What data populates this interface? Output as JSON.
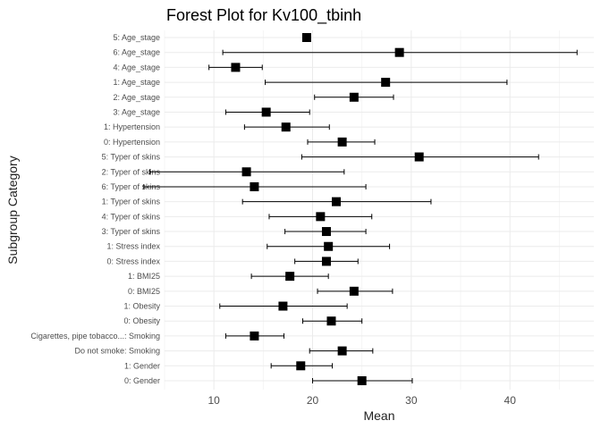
{
  "chart_data": {
    "type": "scatter",
    "subtype": "forest",
    "title": "Forest Plot for Kv100_tbinh",
    "xlabel": "Mean",
    "ylabel": "Subgroup Category",
    "xlim": [
      5.0,
      48.5
    ],
    "xticks": [
      10,
      20,
      30,
      40
    ],
    "grid": true,
    "legend": "none",
    "rows": [
      {
        "label": "5: Age_stage",
        "mean": 19.4,
        "lower": 19.4,
        "upper": 19.4
      },
      {
        "label": "6: Age_stage",
        "mean": 28.8,
        "lower": 10.9,
        "upper": 46.8
      },
      {
        "label": "4: Age_stage",
        "mean": 12.2,
        "lower": 9.5,
        "upper": 14.9
      },
      {
        "label": "1: Age_stage",
        "mean": 27.4,
        "lower": 15.2,
        "upper": 39.7
      },
      {
        "label": "2: Age_stage",
        "mean": 24.2,
        "lower": 20.2,
        "upper": 28.2
      },
      {
        "label": "3: Age_stage",
        "mean": 15.3,
        "lower": 11.2,
        "upper": 19.7
      },
      {
        "label": "1: Hypertension",
        "mean": 17.3,
        "lower": 13.1,
        "upper": 21.7
      },
      {
        "label": "0: Hypertension",
        "mean": 23.0,
        "lower": 19.5,
        "upper": 26.3
      },
      {
        "label": "5: Typer of skins",
        "mean": 30.8,
        "lower": 18.9,
        "upper": 42.9
      },
      {
        "label": "2: Typer of skins",
        "mean": 13.3,
        "lower": 3.5,
        "upper": 23.2
      },
      {
        "label": "6: Typer of skins",
        "mean": 14.1,
        "lower": 2.9,
        "upper": 25.4
      },
      {
        "label": "1: Typer of skins",
        "mean": 22.4,
        "lower": 12.9,
        "upper": 32.0
      },
      {
        "label": "4: Typer of skins",
        "mean": 20.8,
        "lower": 15.6,
        "upper": 26.0
      },
      {
        "label": "3: Typer of skins",
        "mean": 21.4,
        "lower": 17.2,
        "upper": 25.4
      },
      {
        "label": "1: Stress index",
        "mean": 21.6,
        "lower": 15.4,
        "upper": 27.8
      },
      {
        "label": "0: Stress index",
        "mean": 21.4,
        "lower": 18.2,
        "upper": 24.6
      },
      {
        "label": "1: BMI25",
        "mean": 17.7,
        "lower": 13.8,
        "upper": 21.6
      },
      {
        "label": "0: BMI25",
        "mean": 24.2,
        "lower": 20.5,
        "upper": 28.1
      },
      {
        "label": "1: Obesity",
        "mean": 17.0,
        "lower": 10.6,
        "upper": 23.5
      },
      {
        "label": "0: Obesity",
        "mean": 21.9,
        "lower": 19.0,
        "upper": 25.0
      },
      {
        "label": "Cigarettes, pipe tobacco...: Smoking",
        "mean": 14.1,
        "lower": 11.2,
        "upper": 17.1
      },
      {
        "label": "Do not smoke: Smoking",
        "mean": 23.0,
        "lower": 19.7,
        "upper": 26.1
      },
      {
        "label": "1: Gender",
        "mean": 18.8,
        "lower": 15.8,
        "upper": 22.0
      },
      {
        "label": "0: Gender",
        "mean": 25.0,
        "lower": 20.0,
        "upper": 30.1
      }
    ]
  }
}
